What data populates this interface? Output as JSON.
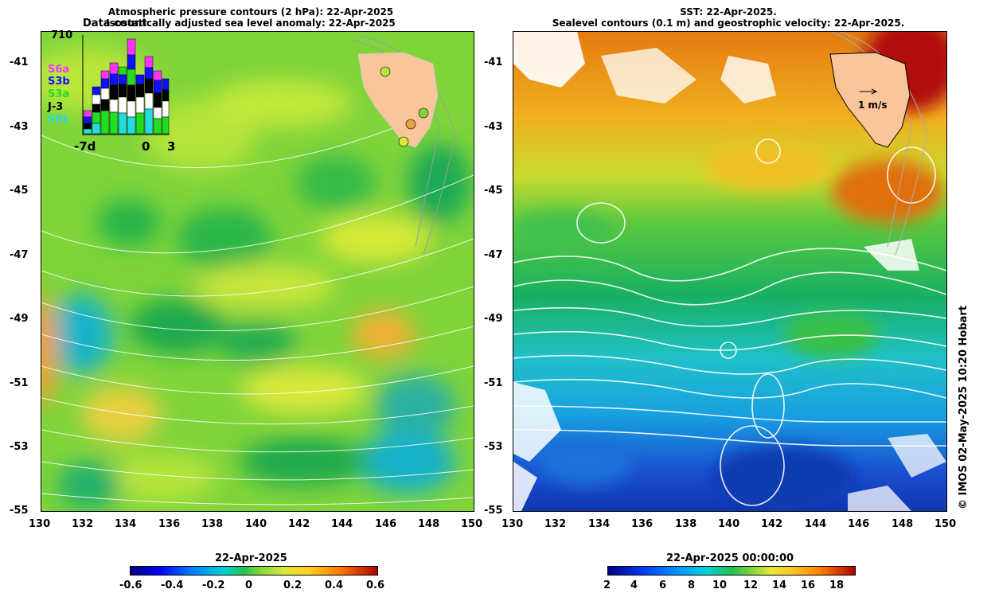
{
  "left_panel": {
    "title_line1": "Atmospheric pressure contours (2 hPa): 22-Apr-2025",
    "title_line2": "Isostatically adjusted sea level anomaly: 22-Apr-2025",
    "data_count": {
      "label": "Data count",
      "max_label": "710",
      "series": [
        "S6a",
        "S3b",
        "S3a",
        "J-3",
        "SRL"
      ],
      "series_colors": [
        "#ff33ff",
        "#1010ff",
        "#22dd22",
        "#000000",
        "#22dddd"
      ],
      "x_labels": [
        "-7d",
        "0",
        "3"
      ]
    },
    "colorbar": {
      "title": "22-Apr-2025",
      "ticks": [
        "-0.6",
        "-0.4",
        "-0.2",
        "0",
        "0.2",
        "0.4",
        "0.6"
      ]
    }
  },
  "right_panel": {
    "title_line1": "SST: 22-Apr-2025.",
    "title_line2": "Sealevel contours (0.1 m) and geostrophic velocity: 22-Apr-2025.",
    "velocity_scale_label": "1 m/s",
    "colorbar": {
      "title": "22-Apr-2025 00:00:00",
      "ticks": [
        "2",
        "4",
        "6",
        "8",
        "10",
        "12",
        "14",
        "16",
        "18"
      ]
    }
  },
  "axes": {
    "lat_ticks": [
      "-41",
      "-43",
      "-45",
      "-47",
      "-49",
      "-51",
      "-53",
      "-55"
    ],
    "lon_ticks": [
      "130",
      "132",
      "134",
      "136",
      "138",
      "140",
      "142",
      "144",
      "146",
      "148",
      "150"
    ]
  },
  "credit": "© IMOS 02-May-2025 10:20 Hobart",
  "colors": {
    "land": "#f9c59a",
    "sla_background": "#7fd43a",
    "sst_warm": "#e47b10",
    "sst_cold": "#1a4fd0"
  }
}
